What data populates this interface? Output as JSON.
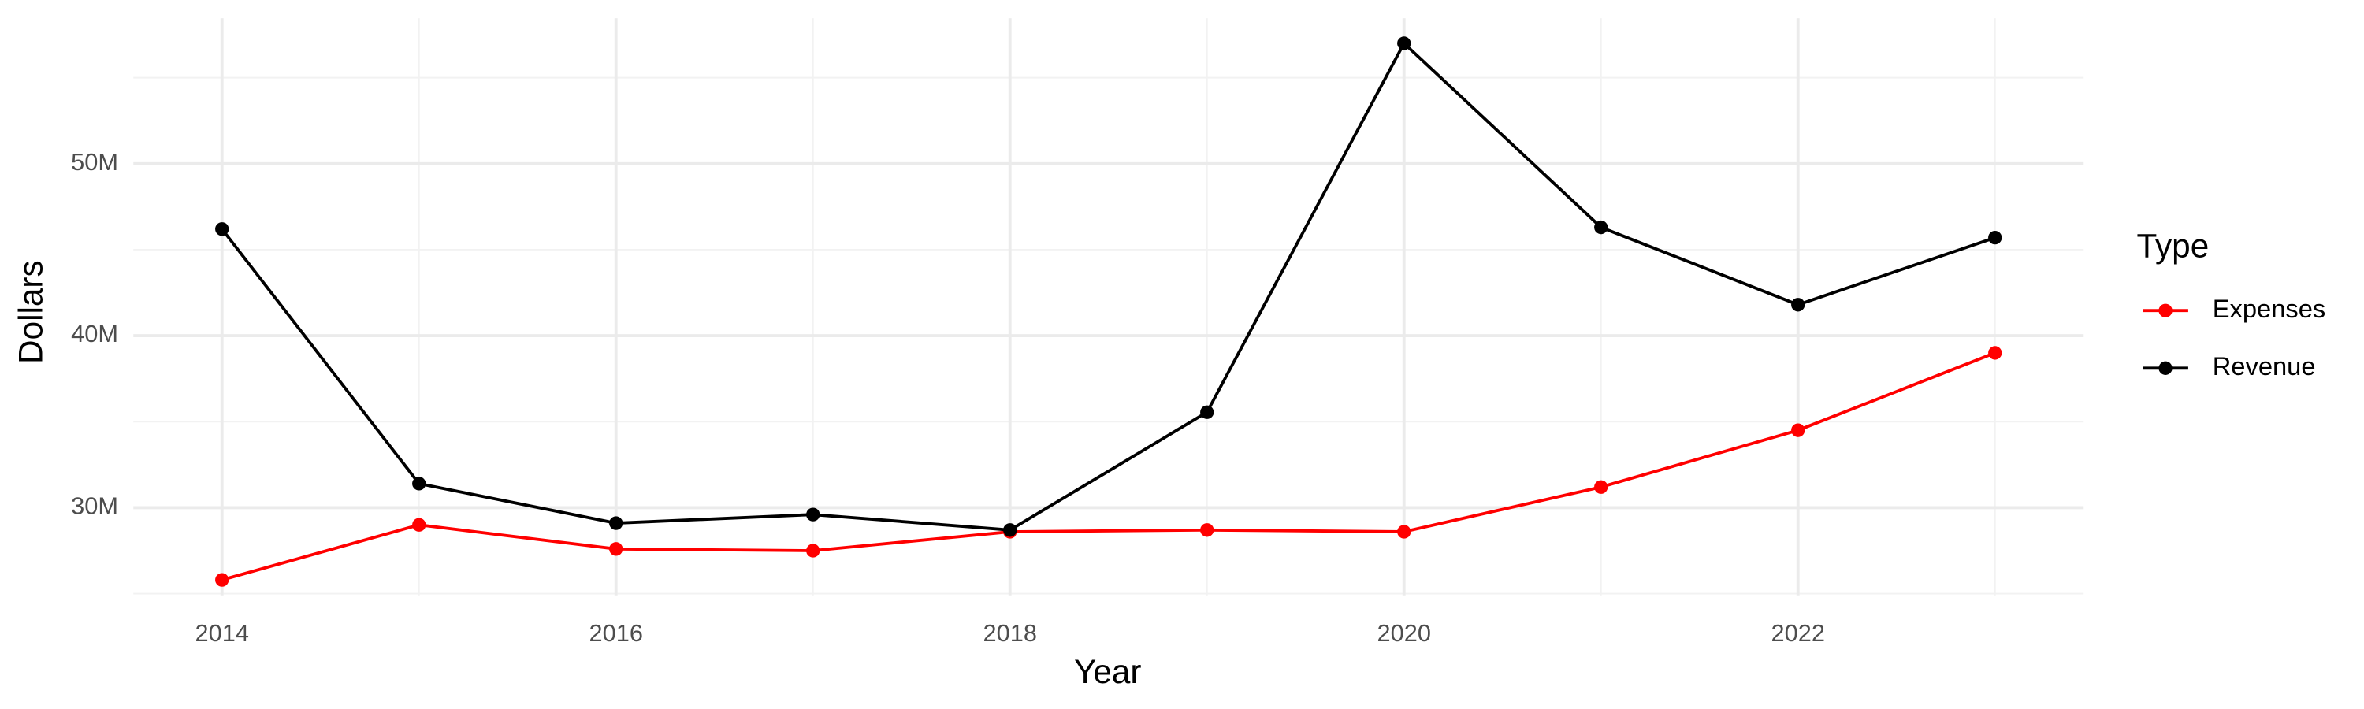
{
  "chart_data": {
    "type": "line",
    "x_label": "Year",
    "y_label": "Dollars",
    "legend_title": "Type",
    "x": [
      2014,
      2015,
      2016,
      2017,
      2018,
      2019,
      2020,
      2021,
      2022,
      2023
    ],
    "series": [
      {
        "name": "Expenses",
        "color": "#ff0000",
        "values": [
          25800000,
          29000000,
          27600000,
          27500000,
          28600000,
          28700000,
          28600000,
          31200000,
          34500000,
          39000000
        ]
      },
      {
        "name": "Revenue",
        "color": "#000000",
        "values": [
          46200000,
          31400000,
          29100000,
          29600000,
          28700000,
          35550000,
          57000000,
          46300000,
          41800000,
          45700000
        ]
      }
    ],
    "xlim": [
      2013.55,
      2023.45
    ],
    "ylim": [
      24900000,
      58460000
    ],
    "xticks": [
      2014,
      2016,
      2018,
      2020,
      2022
    ],
    "yticks": [
      {
        "value": 30000000,
        "label": "30M"
      },
      {
        "value": 40000000,
        "label": "40M"
      },
      {
        "value": 50000000,
        "label": "50M"
      }
    ],
    "grid": true,
    "legend": "right"
  }
}
